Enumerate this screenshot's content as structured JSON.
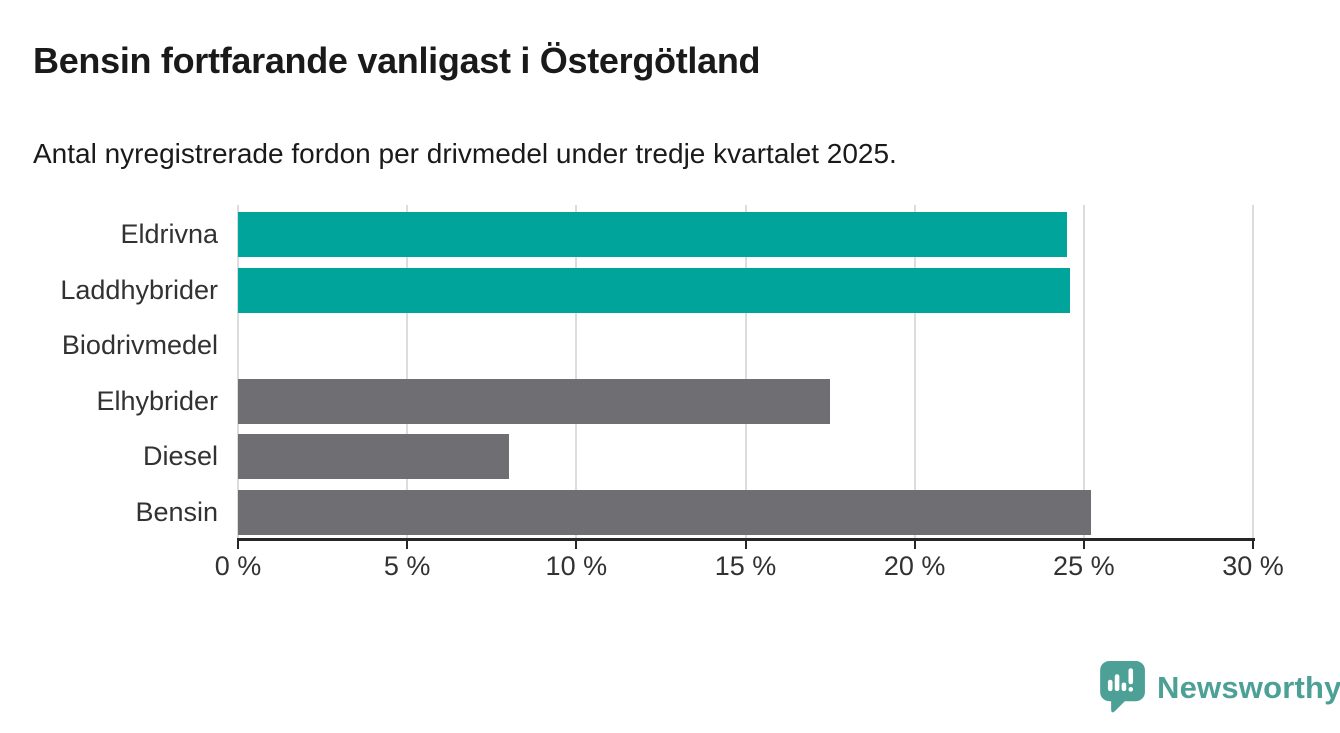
{
  "title": "Bensin fortfarande vanligast i Östergötland",
  "subtitle": "Antal nyregistrerade fordon per drivmedel under tredje kvartalet 2025.",
  "chart_data": {
    "type": "bar",
    "orientation": "horizontal",
    "title": "Bensin fortfarande vanligast i Östergötland",
    "subtitle": "Antal nyregistrerade fordon per drivmedel under tredje kvartalet 2025.",
    "categories": [
      "Eldrivna",
      "Laddhybrider",
      "Biodrivmedel",
      "Elhybrider",
      "Diesel",
      "Bensin"
    ],
    "values": [
      24.5,
      24.6,
      0,
      17.5,
      8,
      25.2
    ],
    "unit": "%",
    "series_colors": [
      "#00a49b",
      "#00a49b",
      "#6e6e73",
      "#6e6e73",
      "#6e6e73",
      "#6e6e73"
    ],
    "highlight_color": "#00a49b",
    "default_color": "#6e6e73",
    "xlim": [
      0,
      30
    ],
    "xticks": [
      0,
      5,
      10,
      15,
      20,
      25,
      30
    ],
    "xtick_labels": [
      "0 %",
      "5 %",
      "10 %",
      "15 %",
      "20 %",
      "25 %",
      "30 %"
    ],
    "grid": true,
    "legend": false,
    "xlabel": "",
    "ylabel": ""
  },
  "footer": {
    "brand": "Newsworthy",
    "logo_icon": "newsworthy-speech-bubble-bar-chart-icon",
    "brand_color": "#4da096"
  }
}
